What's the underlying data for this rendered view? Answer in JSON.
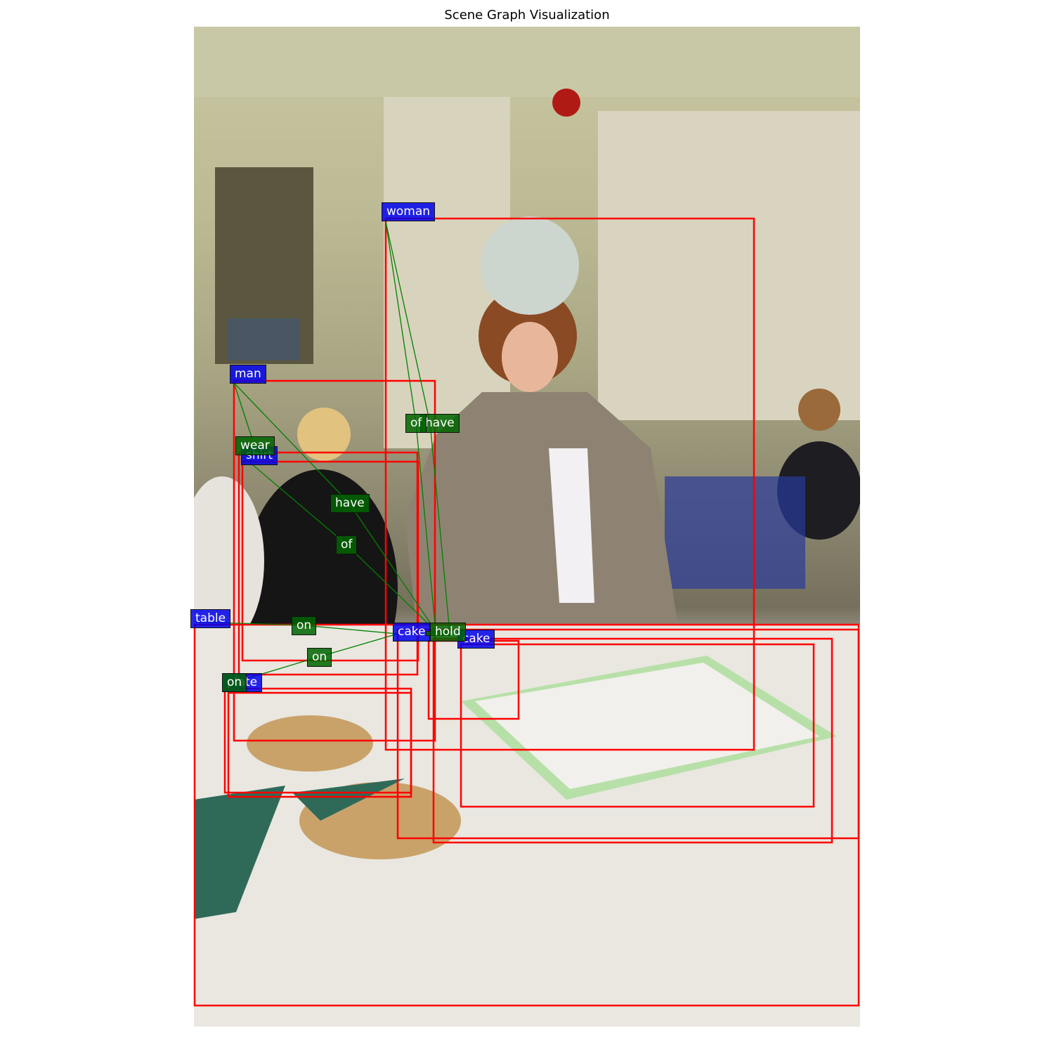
{
  "title": "Scene Graph Visualization",
  "colors": {
    "box": "#ff0000",
    "edge": "#008000",
    "object_label": "#0000ff",
    "relation_label": "#006400"
  },
  "objects": [
    {
      "label": "woman"
    },
    {
      "label": "man"
    },
    {
      "label": "shirt"
    },
    {
      "label": "table"
    },
    {
      "label": "cake"
    },
    {
      "label": "cake"
    },
    {
      "label": "plate"
    }
  ],
  "relations": [
    {
      "label": "of"
    },
    {
      "label": "have"
    },
    {
      "label": "wear"
    },
    {
      "label": "have"
    },
    {
      "label": "of"
    },
    {
      "label": "on"
    },
    {
      "label": "on"
    },
    {
      "label": "hold"
    },
    {
      "label": "on"
    }
  ]
}
